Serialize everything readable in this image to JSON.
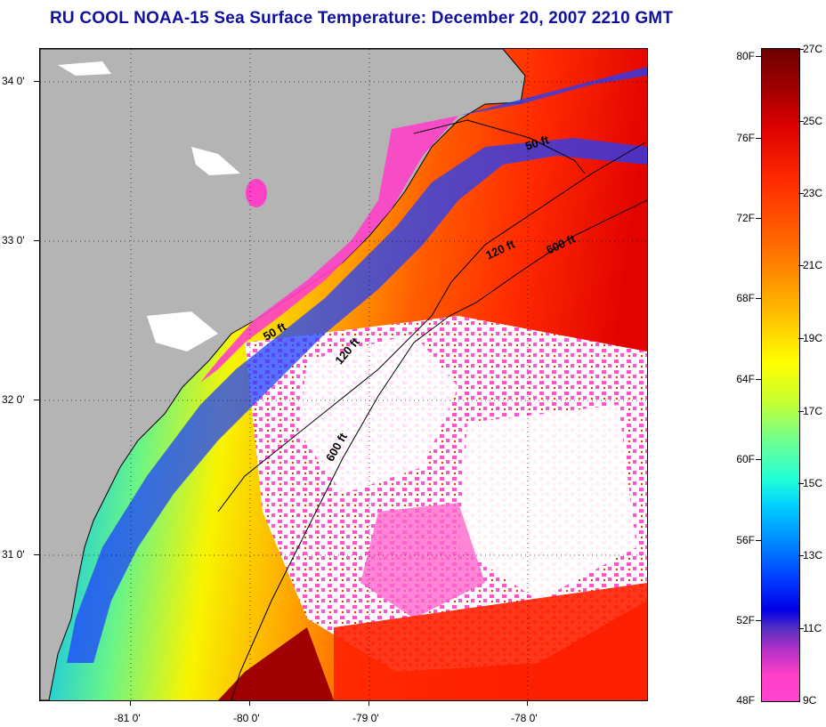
{
  "title": "RU COOL  NOAA-15  Sea Surface Temperature:  December 20, 2007 2210 GMT",
  "map": {
    "latitude_labels": [
      "34 0'",
      "33 0'",
      "32 0'",
      "31 0'"
    ],
    "longitude_labels": [
      "-81 0'",
      "-80 0'",
      "-79 0'",
      "-78 0'"
    ],
    "isobath_labels": [
      "50 ft",
      "120 ft",
      "600 ft",
      "50 ft",
      "120 ft",
      "600 ft"
    ],
    "colors": {
      "land": "#b4b4b4",
      "cloud": "#ffffff",
      "coast_line": "#000000"
    }
  },
  "colorbar": {
    "fahrenheit_labels": [
      "80F",
      "76F",
      "72F",
      "68F",
      "64F",
      "60F",
      "56F",
      "52F",
      "48F"
    ],
    "celsius_labels": [
      "27C",
      "25C",
      "23C",
      "21C",
      "19C",
      "17C",
      "15C",
      "13C",
      "11C",
      "9C"
    ]
  }
}
